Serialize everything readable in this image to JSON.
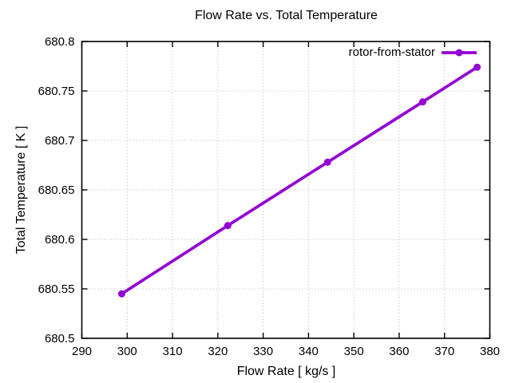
{
  "figure": {
    "background": "#ffffff"
  },
  "palette": {
    "series": "#9400D3",
    "grid": "#b3b3b3",
    "axis": "#000000",
    "background": "#ffffff"
  },
  "legend": {
    "entries": [
      {
        "label": "rotor-from-stator",
        "color": "#9400D3",
        "marker": "filled-circle"
      }
    ]
  },
  "chart_data": {
    "type": "line",
    "title": "Flow Rate vs. Total Temperature",
    "xlabel": "Flow Rate [ kg/s ]",
    "ylabel": "Total Temperature [ K ]",
    "xlim": [
      290,
      380
    ],
    "ylim": [
      680.5,
      680.8
    ],
    "xticks": [
      290,
      300,
      310,
      320,
      330,
      340,
      350,
      360,
      370,
      380
    ],
    "xtick_labels": [
      "290",
      "300",
      "310",
      "320",
      "330",
      "340",
      "350",
      "360",
      "370",
      "380"
    ],
    "yticks": [
      680.5,
      680.55,
      680.6,
      680.65,
      680.7,
      680.75,
      680.8
    ],
    "ytick_labels": [
      "680.5",
      "680.55",
      "680.6",
      "680.65",
      "680.7",
      "680.75",
      "680.8"
    ],
    "grid": true,
    "grid_style": "dotted",
    "legend_position": "top-right-inside",
    "series": [
      {
        "name": "rotor-from-stator",
        "color": "#9400D3",
        "marker": "filled-circle",
        "x": [
          298.8,
          322.2,
          344.2,
          365.2,
          377.2
        ],
        "y": [
          680.545,
          680.614,
          680.678,
          680.739,
          680.774
        ]
      }
    ]
  }
}
